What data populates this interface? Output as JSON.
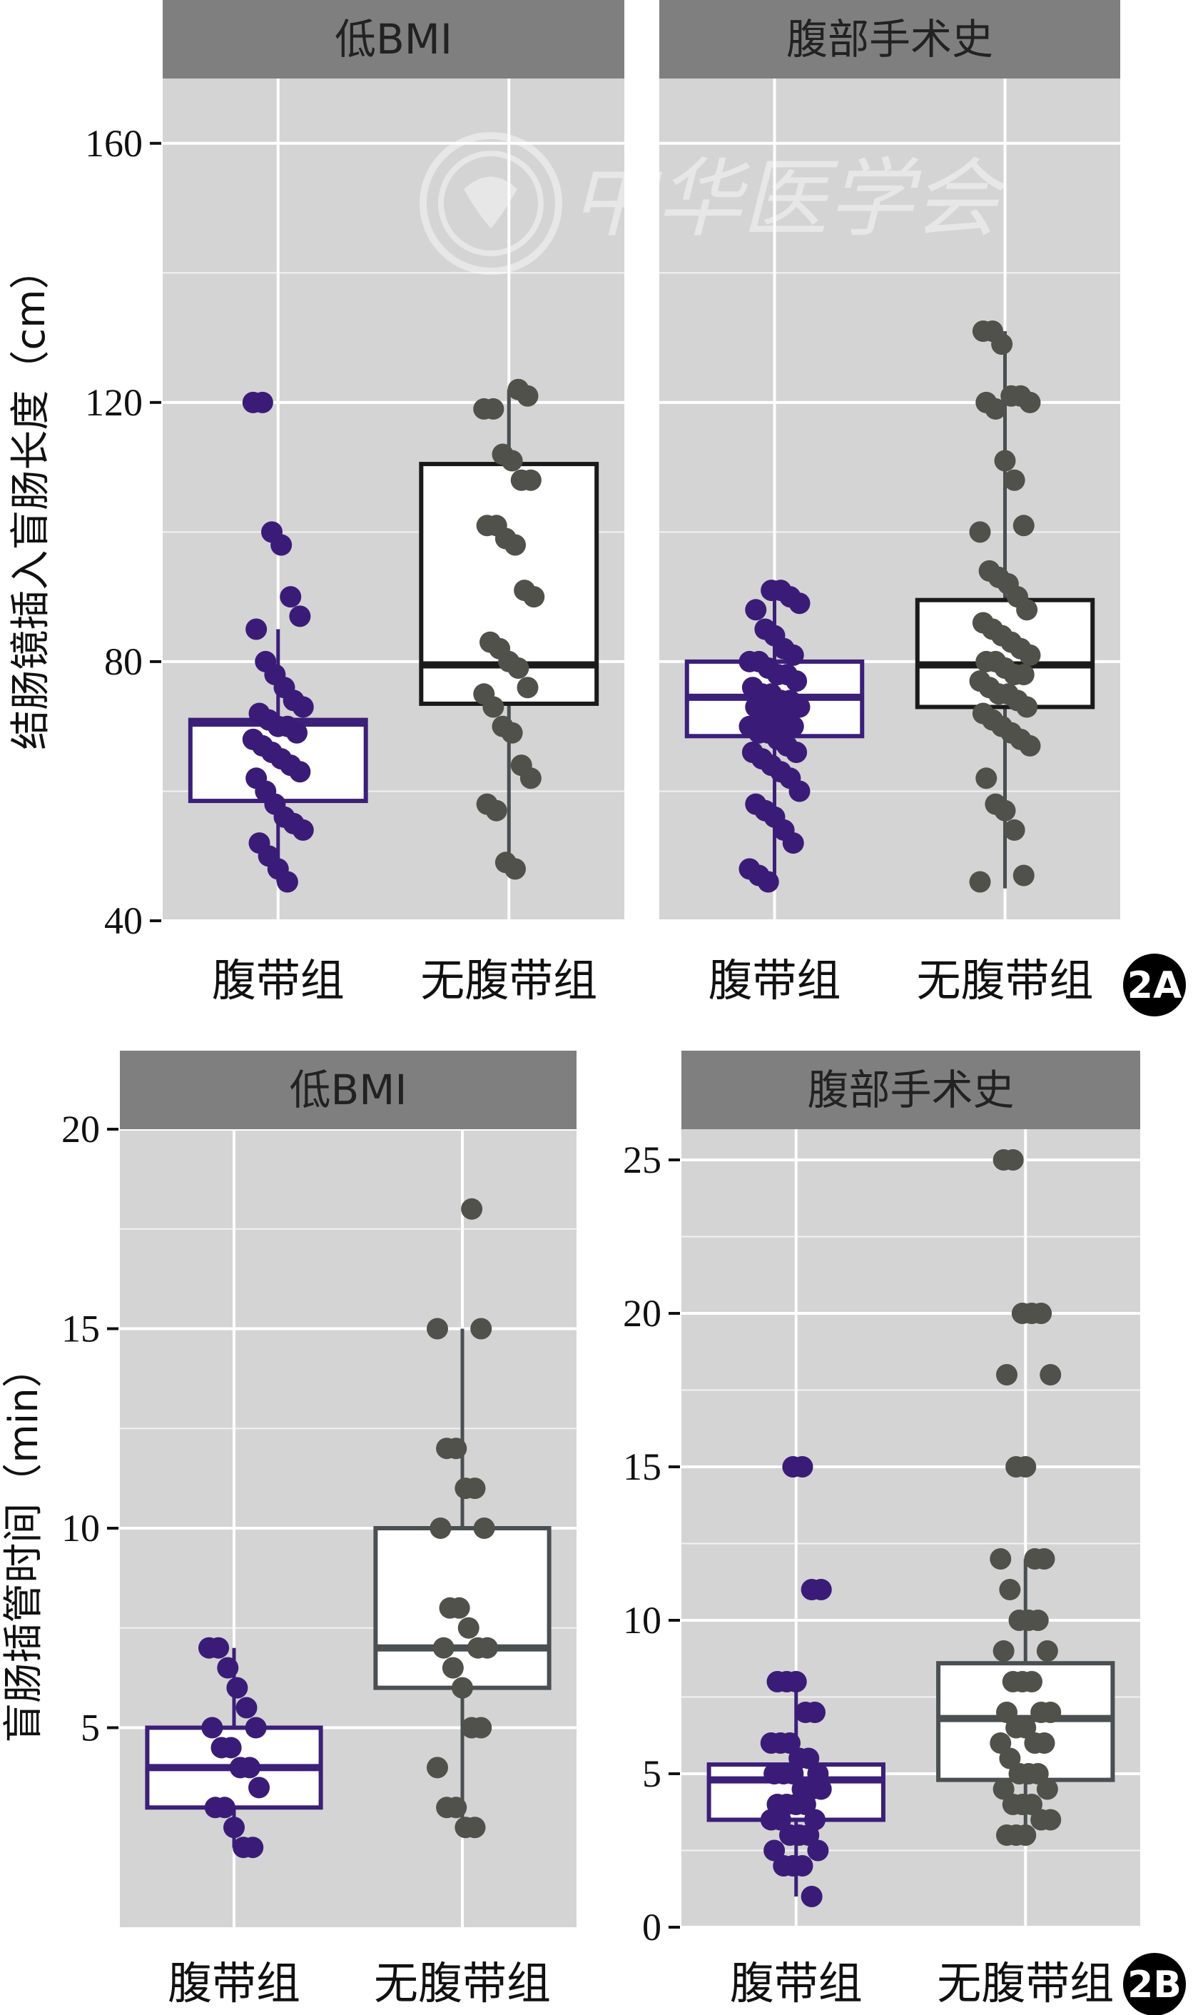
{
  "watermark": "中华医学会",
  "colors": {
    "panel_bg": "#d4d4d4",
    "strip_bg": "#7f7f7f",
    "grid": "#ffffff",
    "belt": "#3b1f78",
    "belt_point": "#3a1c78",
    "no_belt": "#4f514a",
    "no_belt_box_A": "#1a1a1a",
    "no_belt_box_B": "#4a4f52",
    "badge": "#000000"
  },
  "chart_data": [
    {
      "id": "2A",
      "type": "boxplot+dotplot",
      "badge": "2A",
      "ylabel": "结肠镜插入盲肠长度（cm）",
      "ylim": [
        40,
        170
      ],
      "yticks": [
        "40",
        "80",
        "120",
        "160"
      ],
      "ytick_values": [
        40,
        80,
        120,
        160
      ],
      "shared_y": true,
      "grid": true,
      "facets": [
        {
          "strip": "低BMI",
          "groups": [
            {
              "name": "腹带组",
              "box": {
                "q1": 58.5,
                "median": 70.5,
                "q3": 71,
                "whisker_low": 46,
                "whisker_high": 85
              },
              "points": [
                120,
                120,
                100,
                98,
                90,
                87,
                85,
                80,
                78,
                76,
                74,
                73,
                72,
                71,
                70,
                70,
                69,
                68,
                67,
                66,
                65,
                64,
                63,
                62,
                60,
                58,
                56,
                55,
                54,
                52,
                50,
                48,
                46
              ]
            },
            {
              "name": "无腹带组",
              "box": {
                "q1": 73.5,
                "median": 79.5,
                "q3": 110.5,
                "whisker_low": 47,
                "whisker_high": 122
              },
              "points": [
                122,
                121,
                119,
                119,
                112,
                111,
                108,
                108,
                101,
                101,
                99,
                98,
                91,
                90,
                83,
                82,
                80,
                79,
                76,
                75,
                73,
                70,
                69,
                64,
                62,
                58,
                57,
                49,
                48
              ]
            }
          ]
        },
        {
          "strip": "腹部手术史",
          "groups": [
            {
              "name": "腹带组",
              "box": {
                "q1": 68.5,
                "median": 74.5,
                "q3": 80,
                "whisker_low": 45,
                "whisker_high": 92
              },
              "points": [
                91,
                91,
                90,
                89,
                88,
                85,
                84,
                82,
                81,
                80,
                80,
                79,
                78,
                78,
                77,
                76,
                75,
                75,
                74,
                74,
                73,
                73,
                72,
                72,
                71,
                70,
                70,
                69,
                69,
                68,
                67,
                66,
                66,
                65,
                64,
                63,
                62,
                60,
                58,
                57,
                56,
                54,
                52,
                48,
                47,
                46
              ]
            },
            {
              "name": "无腹带组",
              "box": {
                "q1": 73,
                "median": 79.5,
                "q3": 89.5,
                "whisker_low": 45,
                "whisker_high": 131
              },
              "points": [
                131,
                131,
                129,
                121,
                121,
                120,
                120,
                119,
                111,
                108,
                101,
                100,
                94,
                93,
                92,
                90,
                88,
                86,
                85,
                84,
                83,
                82,
                81,
                80,
                80,
                79,
                78,
                78,
                77,
                76,
                75,
                75,
                74,
                73,
                72,
                71,
                70,
                69,
                68,
                67,
                62,
                58,
                57,
                54,
                47,
                46
              ]
            }
          ]
        }
      ]
    },
    {
      "id": "2B",
      "type": "boxplot+dotplot",
      "badge": "2B",
      "ylabel": "盲肠插管时间（min）",
      "shared_y": false,
      "grid": true,
      "facets": [
        {
          "strip": "低BMI",
          "ylim": [
            0,
            20
          ],
          "yticks": [
            "5",
            "10",
            "15",
            "20"
          ],
          "ytick_values": [
            5,
            10,
            15,
            20
          ],
          "groups": [
            {
              "name": "腹带组",
              "box": {
                "q1": 3,
                "median": 4,
                "q3": 5,
                "whisker_low": 2,
                "whisker_high": 7
              },
              "points": [
                7,
                7,
                6.5,
                6,
                5.5,
                5,
                5,
                4.5,
                4.5,
                4,
                4,
                3.5,
                3,
                3,
                2.5,
                2,
                2
              ]
            },
            {
              "name": "无腹带组",
              "box": {
                "q1": 6,
                "median": 7,
                "q3": 10,
                "whisker_low": 2.5,
                "whisker_high": 15
              },
              "points": [
                18,
                15,
                15,
                12,
                12,
                11,
                11,
                10,
                10,
                8,
                8,
                7.5,
                7,
                7,
                7,
                6.5,
                6,
                5,
                5,
                4,
                3,
                3,
                2.5,
                2.5
              ]
            }
          ]
        },
        {
          "strip": "腹部手术史",
          "ylim": [
            0,
            26
          ],
          "yticks": [
            "0",
            "5",
            "10",
            "15",
            "20",
            "25"
          ],
          "ytick_values": [
            0,
            5,
            10,
            15,
            20,
            25
          ],
          "groups": [
            {
              "name": "腹带组",
              "box": {
                "q1": 3.5,
                "median": 4.8,
                "q3": 5.3,
                "whisker_low": 1,
                "whisker_high": 8
              },
              "points": [
                15,
                15,
                11,
                11,
                8,
                8,
                8,
                7,
                7,
                6,
                6,
                6,
                5.5,
                5.5,
                5,
                5,
                5,
                5,
                4.5,
                4.5,
                4.5,
                4,
                4,
                4,
                4,
                3.5,
                3.5,
                3.5,
                3,
                3,
                3,
                2.5,
                2.5,
                2,
                2,
                2,
                1
              ]
            },
            {
              "name": "无腹带组",
              "box": {
                "q1": 4.8,
                "median": 6.8,
                "q3": 8.6,
                "whisker_low": 3,
                "whisker_high": 12
              },
              "points": [
                25,
                25,
                20,
                20,
                20,
                18,
                18,
                15,
                15,
                12,
                12,
                12,
                11,
                10,
                10,
                10,
                9,
                9,
                8,
                8,
                8,
                7,
                7,
                7,
                6.5,
                6.5,
                6,
                6,
                6,
                5.5,
                5,
                5,
                5,
                4.5,
                4.5,
                4,
                4,
                4,
                3.5,
                3.5,
                3,
                3,
                3
              ]
            }
          ]
        }
      ]
    }
  ]
}
